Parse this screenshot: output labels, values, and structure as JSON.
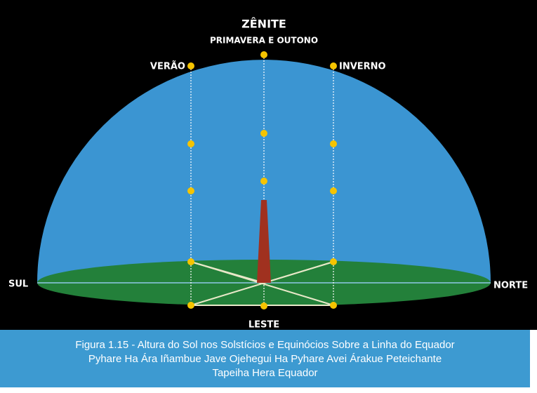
{
  "labels": {
    "zenith": "ZÊNITE",
    "equinox": "PRIMAVERA E OUTONO",
    "summer": "VERÃO",
    "winter": "INVERNO",
    "south": "SUL",
    "north": "NORTE",
    "east": "LESTE"
  },
  "caption": [
    "Figura 1.15 - Altura do Sol nos Solstícios e Equinócios Sobre a Linha do Equador",
    "Pyhare Ha Ára Iñambue Jave Ojehegui Ha Pyhare Avei Árakue Peteichante",
    "Tapeiha Hera Equador"
  ]
}
